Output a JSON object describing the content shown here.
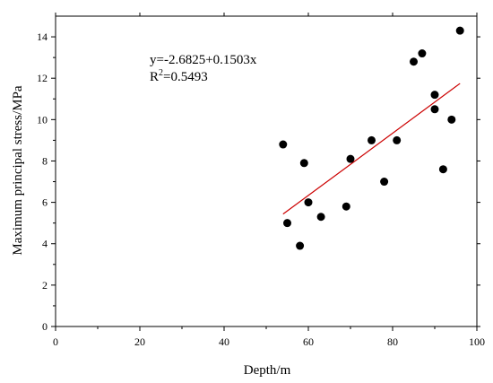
{
  "chart_data": {
    "type": "scatter",
    "xlabel": "Depth/m",
    "ylabel": "Maximum principal stress/MPa",
    "xlim": [
      0,
      100
    ],
    "ylim": [
      0,
      15
    ],
    "x_ticks": [
      "0",
      "20",
      "40",
      "60",
      "80",
      "100"
    ],
    "y_ticks": [
      "0",
      "2",
      "4",
      "6",
      "8",
      "10",
      "12",
      "14"
    ],
    "grid": false,
    "points": [
      {
        "x": 54,
        "y": 8.8
      },
      {
        "x": 55,
        "y": 5.0
      },
      {
        "x": 58,
        "y": 3.9
      },
      {
        "x": 59,
        "y": 7.9
      },
      {
        "x": 60,
        "y": 6.0
      },
      {
        "x": 63,
        "y": 5.3
      },
      {
        "x": 69,
        "y": 5.8
      },
      {
        "x": 70,
        "y": 8.1
      },
      {
        "x": 75,
        "y": 9.0
      },
      {
        "x": 78,
        "y": 7.0
      },
      {
        "x": 81,
        "y": 9.0
      },
      {
        "x": 85,
        "y": 12.8
      },
      {
        "x": 87,
        "y": 13.2
      },
      {
        "x": 90,
        "y": 11.2
      },
      {
        "x": 90,
        "y": 10.5
      },
      {
        "x": 92,
        "y": 7.6
      },
      {
        "x": 94,
        "y": 10.0
      },
      {
        "x": 96,
        "y": 14.3
      }
    ],
    "fit": {
      "intercept": -2.6825,
      "slope": 0.1503,
      "x_range": [
        54,
        96
      ],
      "color": "#cc0000"
    },
    "annotation": {
      "equation": "y=-2.6825+0.1503x",
      "r2_prefix": "R",
      "r2_superscript": "2",
      "r2_suffix": "=0.5493"
    },
    "point_color": "#000000"
  }
}
